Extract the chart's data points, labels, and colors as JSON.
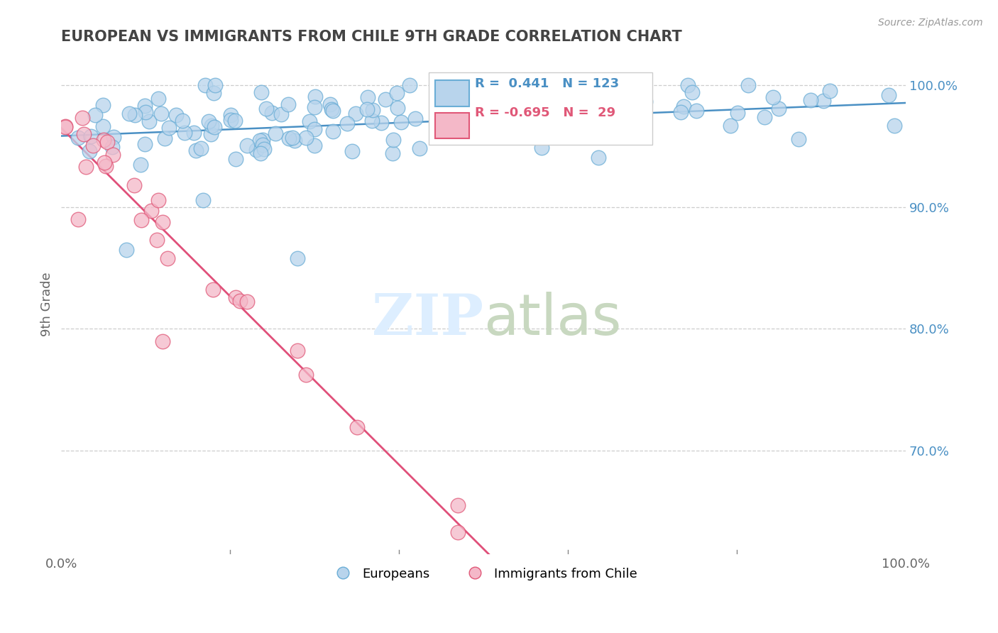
{
  "title": "EUROPEAN VS IMMIGRANTS FROM CHILE 9TH GRADE CORRELATION CHART",
  "source_text": "Source: ZipAtlas.com",
  "ylabel": "9th Grade",
  "xlim": [
    0.0,
    1.0
  ],
  "ylim": [
    0.615,
    1.025
  ],
  "yticks": [
    0.7,
    0.8,
    0.9,
    1.0
  ],
  "ytick_labels": [
    "70.0%",
    "80.0%",
    "90.0%",
    "100.0%"
  ],
  "xticks": [
    0.0,
    1.0
  ],
  "xtick_labels": [
    "0.0%",
    "100.0%"
  ],
  "legend_r_blue": "0.441",
  "legend_n_blue": "123",
  "legend_r_pink": "-0.695",
  "legend_n_pink": "29",
  "blue_color": "#b8d4ec",
  "blue_edge_color": "#6baed6",
  "pink_color": "#f4b8c8",
  "pink_edge_color": "#e05878",
  "blue_line_color": "#4a90c4",
  "pink_line_color": "#e0507a",
  "background_color": "#ffffff",
  "grid_color": "#c8c8c8",
  "title_color": "#444444",
  "source_color": "#999999",
  "watermark_color": "#ddeeff"
}
